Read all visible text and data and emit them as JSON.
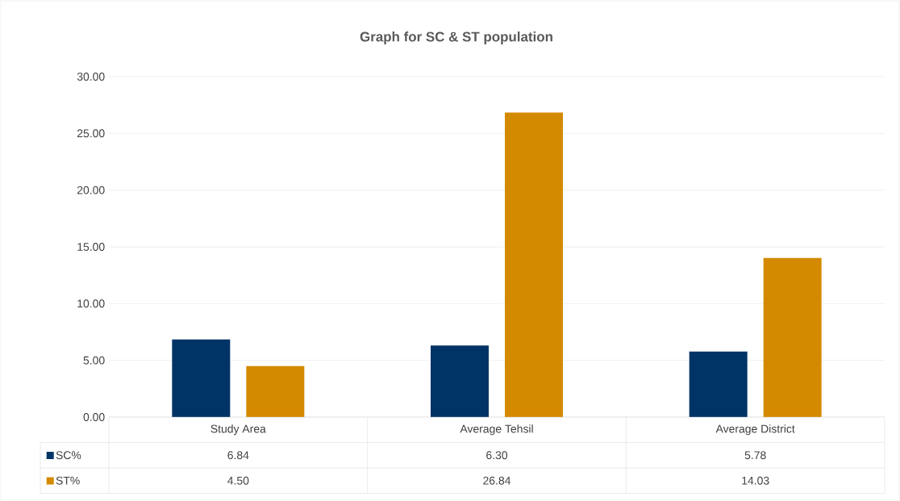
{
  "chart_data": {
    "type": "bar",
    "title": "Graph for SC & ST population",
    "categories": [
      "Study Area",
      "Average Tehsil",
      "Average District"
    ],
    "series": [
      {
        "name": "SC%",
        "color": "#003366",
        "values": [
          6.84,
          6.3,
          5.78
        ],
        "value_labels": [
          "6.84",
          "6.30",
          "5.78"
        ]
      },
      {
        "name": "ST%",
        "color": "#d48a00",
        "values": [
          4.5,
          26.84,
          14.03
        ],
        "value_labels": [
          "4.50",
          "26.84",
          "14.03"
        ]
      }
    ],
    "ylim": [
      0,
      30
    ],
    "yticks": [
      {
        "value": 0,
        "label": "0.00"
      },
      {
        "value": 5,
        "label": "5.00"
      },
      {
        "value": 10,
        "label": "10.00"
      },
      {
        "value": 15,
        "label": "15.00"
      },
      {
        "value": 20,
        "label": "20.00"
      },
      {
        "value": 25,
        "label": "25.00"
      },
      {
        "value": 30,
        "label": "30.00"
      }
    ],
    "grid": "y",
    "legend": "bottom"
  }
}
